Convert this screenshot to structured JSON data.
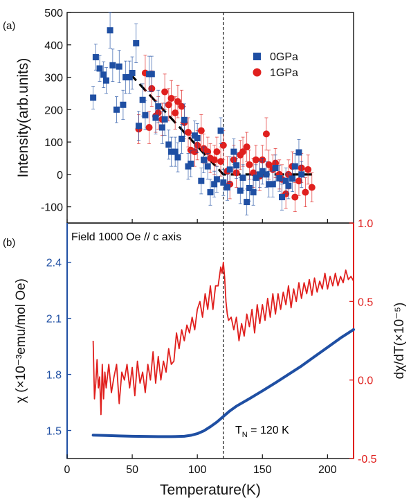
{
  "chart_data": [
    {
      "panel_label": "(a)",
      "type": "scatter",
      "ylabel": "Intensity(arb.units)",
      "xlim": [
        0,
        220
      ],
      "ylim": [
        -150,
        500
      ],
      "xticks": [
        0,
        50,
        100,
        150,
        200
      ],
      "yticks": [
        -100,
        0,
        100,
        200,
        300,
        400,
        500
      ],
      "ytick_labels": [
        "-100",
        "0",
        "100",
        "200",
        "300",
        "400",
        "500"
      ],
      "legend": {
        "position": "top-right"
      },
      "colors": {
        "0GPa": "#1f4fa3",
        "1GPa": "#e0201e",
        "fit": "#000000"
      },
      "series": [
        {
          "name": "0GPa",
          "marker": "square",
          "x": [
            20,
            22,
            25,
            28,
            30,
            33,
            35,
            38,
            40,
            43,
            45,
            48,
            50,
            53,
            55,
            58,
            60,
            63,
            65,
            68,
            70,
            73,
            75,
            78,
            80,
            83,
            85,
            88,
            90,
            93,
            95,
            98,
            100,
            103,
            105,
            108,
            110,
            113,
            115,
            118,
            120,
            123,
            125,
            128,
            130,
            133,
            135,
            138,
            140,
            143,
            145,
            148,
            150,
            153,
            155,
            158,
            160,
            163,
            165,
            168,
            170,
            173,
            175,
            178,
            180
          ],
          "y": [
            237,
            362,
            327,
            308,
            290,
            445,
            337,
            200,
            333,
            215,
            300,
            300,
            313,
            405,
            150,
            230,
            183,
            310,
            310,
            175,
            210,
            145,
            170,
            92,
            70,
            70,
            53,
            110,
            168,
            25,
            33,
            120,
            112,
            -20,
            45,
            25,
            -55,
            -30,
            -15,
            135,
            -25,
            -40,
            15,
            70,
            28,
            -50,
            -10,
            -85,
            -42,
            -55,
            -10,
            0,
            10,
            0,
            -30,
            -30,
            20,
            -12,
            -70,
            -20,
            -35,
            -13,
            25,
            68,
            0
          ],
          "err": [
            35,
            40,
            40,
            40,
            40,
            55,
            50,
            40,
            50,
            45,
            50,
            50,
            50,
            60,
            45,
            50,
            45,
            55,
            55,
            50,
            50,
            50,
            50,
            45,
            45,
            45,
            45,
            45,
            50,
            40,
            40,
            45,
            45,
            40,
            40,
            40,
            40,
            40,
            40,
            40,
            40,
            40,
            40,
            40,
            40,
            40,
            40,
            40,
            40,
            40,
            40,
            40,
            40,
            40,
            40,
            40,
            40,
            40,
            40,
            40,
            40,
            40,
            40,
            40,
            40
          ]
        },
        {
          "name": "1GPa",
          "marker": "circle",
          "x": [
            55,
            60,
            63,
            65,
            68,
            70,
            73,
            75,
            78,
            80,
            83,
            85,
            88,
            90,
            93,
            95,
            98,
            100,
            103,
            105,
            108,
            110,
            113,
            115,
            118,
            120,
            123,
            125,
            128,
            130,
            133,
            135,
            138,
            140,
            143,
            145,
            148,
            150,
            153,
            155,
            158,
            160,
            163,
            165,
            168,
            170,
            173,
            175,
            178,
            180,
            183,
            185,
            188
          ],
          "y": [
            140,
            313,
            145,
            265,
            180,
            190,
            170,
            255,
            215,
            235,
            190,
            225,
            210,
            160,
            130,
            75,
            70,
            90,
            135,
            80,
            70,
            50,
            45,
            70,
            40,
            90,
            10,
            -30,
            45,
            5,
            60,
            70,
            85,
            30,
            5,
            45,
            -5,
            45,
            125,
            30,
            15,
            35,
            0,
            -15,
            -60,
            0,
            25,
            -70,
            -20,
            20,
            -55,
            15,
            -40
          ],
          "err": [
            45,
            55,
            50,
            55,
            50,
            50,
            50,
            55,
            50,
            55,
            50,
            50,
            50,
            50,
            45,
            45,
            45,
            45,
            50,
            45,
            45,
            45,
            45,
            45,
            45,
            45,
            45,
            45,
            45,
            45,
            45,
            45,
            45,
            45,
            45,
            45,
            45,
            45,
            50,
            45,
            45,
            45,
            45,
            45,
            45,
            45,
            45,
            45,
            45,
            45,
            45,
            45,
            45
          ]
        }
      ],
      "fit_line": {
        "x": [
          48,
          120,
          188
        ],
        "y": [
          312,
          0,
          0
        ]
      },
      "vline_x": 120
    },
    {
      "panel_label": "(b)",
      "type": "line",
      "annotation": "Field 1000 Oe // c axis",
      "tn_label": "T = 120 K",
      "tn_subscript": "N",
      "xlabel": "Temperature(K)",
      "ylabel_left": "χ (×10⁻³emu/mol Oe)",
      "ylabel_right": "dχ/dT(×10⁻⁵)",
      "xlim": [
        0,
        220
      ],
      "ylim_left": [
        1.35,
        2.61
      ],
      "ylim_right": [
        -0.5,
        1.0
      ],
      "xticks": [
        0,
        50,
        100,
        150,
        200
      ],
      "xtick_labels": [
        "0",
        "50",
        "100",
        "150",
        "200"
      ],
      "yticks_left": [
        1.5,
        1.8,
        2.1,
        2.4
      ],
      "ytick_labels_left": [
        "1.5",
        "1.8",
        "2.1",
        "2.4"
      ],
      "yticks_right": [
        -0.5,
        0.0,
        0.5,
        1.0
      ],
      "ytick_labels_right": [
        "-0.5",
        "0.0",
        "0.5",
        "1.0"
      ],
      "colors": {
        "chi": "#1f4fa3",
        "dchi": "#e0201e",
        "left_axis": "#1f4fa3",
        "right_axis": "#e0201e"
      },
      "series": [
        {
          "name": "χ",
          "axis": "left",
          "x": [
            20,
            30,
            40,
            50,
            60,
            70,
            80,
            90,
            95,
            100,
            105,
            110,
            115,
            120,
            125,
            130,
            140,
            150,
            160,
            170,
            180,
            190,
            200,
            210,
            220
          ],
          "y": [
            1.475,
            1.473,
            1.471,
            1.469,
            1.468,
            1.467,
            1.467,
            1.469,
            1.474,
            1.483,
            1.498,
            1.52,
            1.545,
            1.575,
            1.605,
            1.63,
            1.67,
            1.712,
            1.755,
            1.8,
            1.845,
            1.895,
            1.945,
            1.995,
            2.04
          ]
        },
        {
          "name": "dχ/dT",
          "axis": "right",
          "x": [
            20,
            21,
            22,
            23,
            24,
            25,
            26,
            27,
            28,
            29,
            30,
            32,
            34,
            36,
            38,
            40,
            42,
            44,
            46,
            48,
            50,
            52,
            54,
            56,
            58,
            60,
            62,
            64,
            66,
            68,
            70,
            72,
            74,
            76,
            78,
            80,
            82,
            84,
            86,
            88,
            90,
            92,
            94,
            96,
            98,
            100,
            102,
            104,
            106,
            108,
            110,
            112,
            114,
            116,
            118,
            119,
            120,
            121,
            122,
            123,
            124,
            126,
            128,
            130,
            132,
            134,
            136,
            138,
            140,
            142,
            144,
            146,
            148,
            150,
            152,
            154,
            156,
            158,
            160,
            162,
            164,
            166,
            168,
            170,
            172,
            174,
            176,
            178,
            180,
            182,
            184,
            186,
            188,
            190,
            192,
            194,
            196,
            198,
            200,
            202,
            204,
            206,
            208,
            210,
            212,
            214,
            216,
            218,
            220
          ],
          "y": [
            0.25,
            -0.12,
            -0.02,
            0.13,
            -0.05,
            0.02,
            -0.22,
            0.1,
            -0.12,
            0.05,
            -0.05,
            0.1,
            -0.08,
            0.02,
            0.1,
            -0.15,
            0.05,
            0.0,
            0.1,
            -0.05,
            0.08,
            -0.1,
            0.12,
            -0.02,
            0.05,
            -0.08,
            0.1,
            0.0,
            0.18,
            -0.02,
            0.15,
            0.0,
            0.12,
            0.05,
            0.2,
            0.1,
            0.12,
            0.3,
            0.2,
            0.32,
            0.25,
            0.35,
            0.3,
            0.4,
            0.32,
            0.45,
            0.5,
            0.4,
            0.55,
            0.45,
            0.6,
            0.45,
            0.6,
            0.6,
            0.72,
            0.68,
            0.75,
            0.65,
            0.5,
            0.42,
            0.38,
            0.4,
            0.32,
            0.4,
            0.25,
            0.36,
            0.28,
            0.42,
            0.34,
            0.45,
            0.3,
            0.48,
            0.36,
            0.48,
            0.38,
            0.52,
            0.4,
            0.55,
            0.42,
            0.55,
            0.45,
            0.56,
            0.48,
            0.6,
            0.46,
            0.58,
            0.5,
            0.62,
            0.52,
            0.62,
            0.55,
            0.64,
            0.54,
            0.65,
            0.56,
            0.63,
            0.58,
            0.68,
            0.58,
            0.66,
            0.6,
            0.68,
            0.6,
            0.66,
            0.62,
            0.7,
            0.64,
            0.66,
            0.63
          ]
        }
      ],
      "vline_x": 120
    }
  ]
}
